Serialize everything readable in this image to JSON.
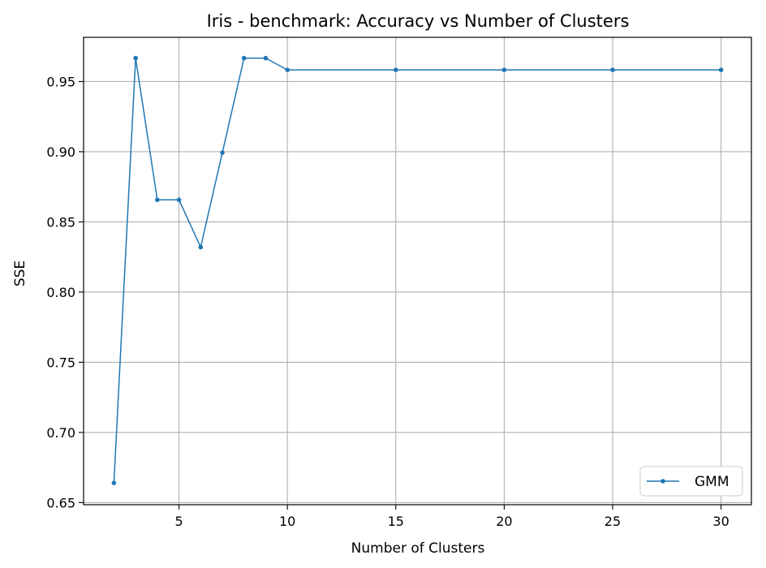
{
  "chart_data": {
    "type": "line",
    "title": "Iris - benchmark: Accuracy vs Number of Clusters",
    "xlabel": "Number of Clusters",
    "ylabel": "SSE",
    "xlim": [
      0.6,
      31.4
    ],
    "ylim": [
      0.6485,
      0.9815
    ],
    "x_ticks": [
      5,
      10,
      15,
      20,
      25,
      30
    ],
    "x_tick_labels": [
      "5",
      "10",
      "15",
      "20",
      "25",
      "30"
    ],
    "y_ticks": [
      0.65,
      0.7,
      0.75,
      0.8,
      0.85,
      0.9,
      0.95
    ],
    "y_tick_labels": [
      "0.65",
      "0.70",
      "0.75",
      "0.80",
      "0.85",
      "0.90",
      "0.95"
    ],
    "grid": true,
    "legend_position": "bottom-right",
    "series": [
      {
        "name": "GMM",
        "color": "#1f77b4",
        "marker": "circle",
        "x": [
          2,
          3,
          4,
          5,
          6,
          7,
          8,
          9,
          10,
          15,
          20,
          25,
          30
        ],
        "y": [
          0.664,
          0.9667,
          0.8657,
          0.8657,
          0.832,
          0.8993,
          0.9667,
          0.9667,
          0.9583,
          0.9583,
          0.9583,
          0.9583,
          0.9583
        ]
      }
    ]
  }
}
